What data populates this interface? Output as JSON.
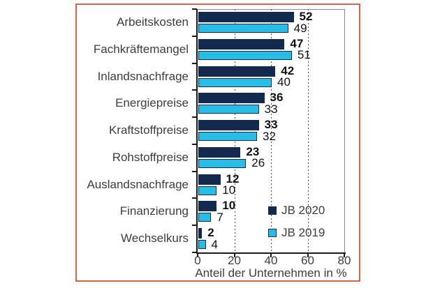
{
  "frame": {
    "border_color": "#de6340"
  },
  "colors": {
    "navy": "#13294d",
    "cyan": "#27bde6",
    "axis": "#1a1a1a",
    "plot_border_gray": "#8a8a8a"
  },
  "chart_data": {
    "type": "bar",
    "orientation": "horizontal",
    "title": "",
    "categories": [
      "Arbeitskosten",
      "Fachkräftemangel",
      "Inlandsnachfrage",
      "Energiepreise",
      "Kraftstoffpreise",
      "Rohstoffpreise",
      "Auslandsnachfrage",
      "Finanzierung",
      "Wechselkurs"
    ],
    "series": [
      {
        "name": "JB 2020",
        "color": "#13294d",
        "values": [
          52,
          47,
          42,
          36,
          33,
          23,
          12,
          10,
          2
        ]
      },
      {
        "name": "JB 2019",
        "color": "#27bde6",
        "values": [
          49,
          51,
          40,
          33,
          32,
          26,
          10,
          7,
          4
        ]
      }
    ],
    "xlabel": "Anteil der Unternehmen in %",
    "xlim": [
      0,
      80
    ],
    "xticks": [
      0,
      20,
      40,
      60,
      80
    ],
    "gridline_values": [
      20,
      40,
      60
    ],
    "grid_style": "dotted-vertical",
    "legend_position": "inside-bottom-right",
    "value_labels_shown": true
  }
}
